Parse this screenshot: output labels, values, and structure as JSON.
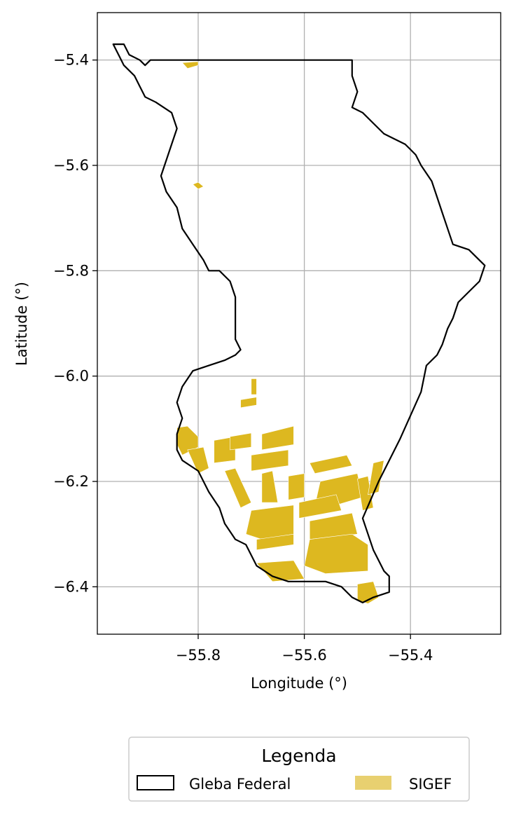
{
  "chart_data": {
    "type": "map",
    "xlabel": "Longitude (°)",
    "ylabel": "Latitude (°)",
    "xlim": [
      -55.99,
      -55.23
    ],
    "ylim": [
      -6.49,
      -5.31
    ],
    "x_ticks": [
      -55.8,
      -55.6,
      -55.4
    ],
    "y_ticks": [
      -5.4,
      -5.6,
      -5.8,
      -6.0,
      -6.2,
      -6.4
    ],
    "x_tick_labels": [
      "−55.8",
      "−55.6",
      "−55.4"
    ],
    "y_tick_labels": [
      "−5.4",
      "−5.6",
      "−5.8",
      "−6.0",
      "−6.2",
      "−6.4"
    ],
    "grid": true,
    "legend": {
      "title": "Legenda",
      "placement": "bottom-center",
      "entries": [
        {
          "label": "Gleba Federal",
          "style": "outline",
          "color": "#000000"
        },
        {
          "label": "SIGEF",
          "style": "fill",
          "color": "#e8d070"
        }
      ]
    },
    "colors": {
      "gleba_edge": "#000000",
      "sigef_fill": "#ddb820",
      "grid": "#b0b0b0"
    },
    "gleba_boundary": [
      [
        -55.96,
        -5.37
      ],
      [
        -55.94,
        -5.37
      ],
      [
        -55.93,
        -5.39
      ],
      [
        -55.91,
        -5.4
      ],
      [
        -55.9,
        -5.41
      ],
      [
        -55.89,
        -5.4
      ],
      [
        -55.51,
        -5.4
      ],
      [
        -55.51,
        -5.43
      ],
      [
        -55.5,
        -5.46
      ],
      [
        -55.51,
        -5.49
      ],
      [
        -55.49,
        -5.5
      ],
      [
        -55.47,
        -5.52
      ],
      [
        -55.45,
        -5.54
      ],
      [
        -55.43,
        -5.55
      ],
      [
        -55.41,
        -5.56
      ],
      [
        -55.4,
        -5.57
      ],
      [
        -55.39,
        -5.58
      ],
      [
        -55.38,
        -5.6
      ],
      [
        -55.36,
        -5.63
      ],
      [
        -55.35,
        -5.66
      ],
      [
        -55.34,
        -5.69
      ],
      [
        -55.33,
        -5.72
      ],
      [
        -55.32,
        -5.75
      ],
      [
        -55.29,
        -5.76
      ],
      [
        -55.27,
        -5.78
      ],
      [
        -55.26,
        -5.79
      ],
      [
        -55.27,
        -5.82
      ],
      [
        -55.29,
        -5.84
      ],
      [
        -55.31,
        -5.86
      ],
      [
        -55.32,
        -5.89
      ],
      [
        -55.33,
        -5.91
      ],
      [
        -55.34,
        -5.94
      ],
      [
        -55.35,
        -5.96
      ],
      [
        -55.37,
        -5.98
      ],
      [
        -55.38,
        -6.03
      ],
      [
        -55.42,
        -6.12
      ],
      [
        -55.46,
        -6.2
      ],
      [
        -55.49,
        -6.27
      ],
      [
        -55.48,
        -6.3
      ],
      [
        -55.47,
        -6.33
      ],
      [
        -55.46,
        -6.35
      ],
      [
        -55.45,
        -6.37
      ],
      [
        -55.44,
        -6.38
      ],
      [
        -55.44,
        -6.41
      ],
      [
        -55.47,
        -6.42
      ],
      [
        -55.49,
        -6.43
      ],
      [
        -55.51,
        -6.42
      ],
      [
        -55.53,
        -6.4
      ],
      [
        -55.56,
        -6.39
      ],
      [
        -55.6,
        -6.39
      ],
      [
        -55.63,
        -6.39
      ],
      [
        -55.66,
        -6.38
      ],
      [
        -55.69,
        -6.36
      ],
      [
        -55.7,
        -6.34
      ],
      [
        -55.71,
        -6.32
      ],
      [
        -55.73,
        -6.31
      ],
      [
        -55.75,
        -6.28
      ],
      [
        -55.76,
        -6.25
      ],
      [
        -55.78,
        -6.22
      ],
      [
        -55.79,
        -6.2
      ],
      [
        -55.8,
        -6.18
      ],
      [
        -55.83,
        -6.16
      ],
      [
        -55.84,
        -6.14
      ],
      [
        -55.84,
        -6.11
      ],
      [
        -55.83,
        -6.08
      ],
      [
        -55.84,
        -6.05
      ],
      [
        -55.83,
        -6.02
      ],
      [
        -55.81,
        -5.99
      ],
      [
        -55.78,
        -5.98
      ],
      [
        -55.75,
        -5.97
      ],
      [
        -55.73,
        -5.96
      ],
      [
        -55.72,
        -5.95
      ],
      [
        -55.73,
        -5.93
      ],
      [
        -55.73,
        -5.89
      ],
      [
        -55.73,
        -5.85
      ],
      [
        -55.74,
        -5.82
      ],
      [
        -55.76,
        -5.8
      ],
      [
        -55.78,
        -5.8
      ],
      [
        -55.79,
        -5.78
      ],
      [
        -55.81,
        -5.75
      ],
      [
        -55.83,
        -5.72
      ],
      [
        -55.84,
        -5.68
      ],
      [
        -55.86,
        -5.65
      ],
      [
        -55.87,
        -5.62
      ],
      [
        -55.86,
        -5.59
      ],
      [
        -55.85,
        -5.56
      ],
      [
        -55.84,
        -5.53
      ],
      [
        -55.85,
        -5.5
      ],
      [
        -55.88,
        -5.48
      ],
      [
        -55.9,
        -5.47
      ],
      [
        -55.91,
        -5.45
      ],
      [
        -55.92,
        -5.43
      ],
      [
        -55.94,
        -5.41
      ],
      [
        -55.95,
        -5.39
      ]
    ],
    "sigef_parcels": [
      [
        [
          -55.83,
          -5.405
        ],
        [
          -55.8,
          -5.403
        ],
        [
          -55.8,
          -5.41
        ],
        [
          -55.82,
          -5.416
        ]
      ],
      [
        [
          -55.8,
          -5.632
        ],
        [
          -55.79,
          -5.64
        ],
        [
          -55.8,
          -5.645
        ],
        [
          -55.81,
          -5.636
        ]
      ],
      [
        [
          -55.7,
          -6.005
        ],
        [
          -55.69,
          -6.005
        ],
        [
          -55.69,
          -6.035
        ],
        [
          -55.7,
          -6.035
        ]
      ],
      [
        [
          -55.72,
          -6.045
        ],
        [
          -55.69,
          -6.04
        ],
        [
          -55.69,
          -6.055
        ],
        [
          -55.72,
          -6.06
        ]
      ],
      [
        [
          -55.84,
          -6.098
        ],
        [
          -55.82,
          -6.095
        ],
        [
          -55.8,
          -6.115
        ],
        [
          -55.8,
          -6.135
        ],
        [
          -55.83,
          -6.15
        ],
        [
          -55.84,
          -6.13
        ]
      ],
      [
        [
          -55.82,
          -6.14
        ],
        [
          -55.79,
          -6.135
        ],
        [
          -55.78,
          -6.175
        ],
        [
          -55.8,
          -6.185
        ]
      ],
      [
        [
          -55.77,
          -6.122
        ],
        [
          -55.73,
          -6.115
        ],
        [
          -55.73,
          -6.16
        ],
        [
          -55.77,
          -6.165
        ]
      ],
      [
        [
          -55.74,
          -6.115
        ],
        [
          -55.7,
          -6.108
        ],
        [
          -55.7,
          -6.135
        ],
        [
          -55.74,
          -6.14
        ]
      ],
      [
        [
          -55.68,
          -6.11
        ],
        [
          -55.62,
          -6.095
        ],
        [
          -55.62,
          -6.13
        ],
        [
          -55.68,
          -6.14
        ]
      ],
      [
        [
          -55.7,
          -6.15
        ],
        [
          -55.63,
          -6.14
        ],
        [
          -55.63,
          -6.17
        ],
        [
          -55.7,
          -6.18
        ]
      ],
      [
        [
          -55.59,
          -6.165
        ],
        [
          -55.52,
          -6.15
        ],
        [
          -55.51,
          -6.17
        ],
        [
          -55.58,
          -6.185
        ]
      ],
      [
        [
          -55.75,
          -6.18
        ],
        [
          -55.73,
          -6.175
        ],
        [
          -55.7,
          -6.24
        ],
        [
          -55.72,
          -6.25
        ]
      ],
      [
        [
          -55.68,
          -6.185
        ],
        [
          -55.66,
          -6.18
        ],
        [
          -55.65,
          -6.24
        ],
        [
          -55.68,
          -6.24
        ]
      ],
      [
        [
          -55.63,
          -6.19
        ],
        [
          -55.6,
          -6.185
        ],
        [
          -55.6,
          -6.23
        ],
        [
          -55.63,
          -6.235
        ]
      ],
      [
        [
          -55.57,
          -6.2
        ],
        [
          -55.5,
          -6.185
        ],
        [
          -55.49,
          -6.23
        ],
        [
          -55.54,
          -6.245
        ],
        [
          -55.58,
          -6.245
        ]
      ],
      [
        [
          -55.5,
          -6.195
        ],
        [
          -55.48,
          -6.19
        ],
        [
          -55.47,
          -6.25
        ],
        [
          -55.49,
          -6.255
        ]
      ],
      [
        [
          -55.47,
          -6.165
        ],
        [
          -55.45,
          -6.16
        ],
        [
          -55.46,
          -6.22
        ],
        [
          -55.48,
          -6.225
        ]
      ],
      [
        [
          -55.61,
          -6.24
        ],
        [
          -55.54,
          -6.225
        ],
        [
          -55.53,
          -6.255
        ],
        [
          -55.61,
          -6.27
        ]
      ],
      [
        [
          -55.7,
          -6.255
        ],
        [
          -55.62,
          -6.245
        ],
        [
          -55.62,
          -6.3
        ],
        [
          -55.68,
          -6.31
        ],
        [
          -55.71,
          -6.3
        ]
      ],
      [
        [
          -55.69,
          -6.31
        ],
        [
          -55.62,
          -6.3
        ],
        [
          -55.62,
          -6.32
        ],
        [
          -55.69,
          -6.33
        ]
      ],
      [
        [
          -55.59,
          -6.275
        ],
        [
          -55.51,
          -6.26
        ],
        [
          -55.5,
          -6.3
        ],
        [
          -55.59,
          -6.31
        ]
      ],
      [
        [
          -55.59,
          -6.31
        ],
        [
          -55.51,
          -6.3
        ],
        [
          -55.48,
          -6.32
        ],
        [
          -55.48,
          -6.37
        ],
        [
          -55.56,
          -6.375
        ],
        [
          -55.6,
          -6.36
        ]
      ],
      [
        [
          -55.69,
          -6.355
        ],
        [
          -55.62,
          -6.35
        ],
        [
          -55.6,
          -6.385
        ],
        [
          -55.66,
          -6.39
        ]
      ],
      [
        [
          -55.5,
          -6.395
        ],
        [
          -55.47,
          -6.39
        ],
        [
          -55.46,
          -6.42
        ],
        [
          -55.48,
          -6.432
        ],
        [
          -55.5,
          -6.425
        ]
      ]
    ]
  }
}
